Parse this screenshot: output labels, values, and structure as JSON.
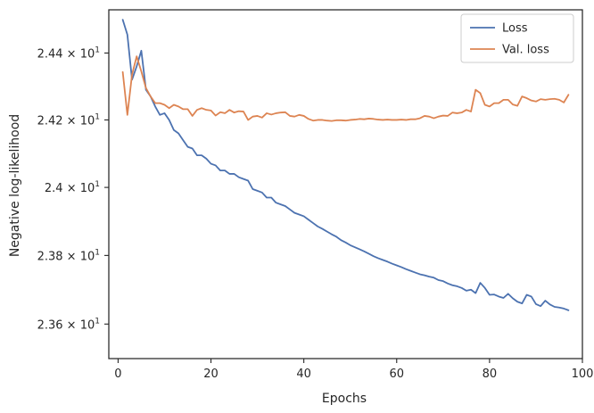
{
  "chart_data": {
    "type": "line",
    "title": "",
    "xlabel": "Epochs",
    "ylabel": "Negative log-likelihood",
    "xlim": [
      -2,
      100
    ],
    "ylim": [
      23.5,
      24.53
    ],
    "yscale": "log",
    "grid": false,
    "legend_position": "top-right",
    "x_ticks": [
      0,
      20,
      40,
      60,
      80,
      100
    ],
    "x_tick_labels": [
      "0",
      "20",
      "40",
      "60",
      "80",
      "100"
    ],
    "y_ticks": [
      23.6,
      23.8,
      24.0,
      24.2,
      24.4
    ],
    "y_tick_labels": [
      {
        "mantissa": "2.36",
        "exp": "1"
      },
      {
        "mantissa": "2.38",
        "exp": "1"
      },
      {
        "mantissa": "2.4",
        "exp": "1"
      },
      {
        "mantissa": "2.42",
        "exp": "1"
      },
      {
        "mantissa": "2.44",
        "exp": "1"
      }
    ],
    "series": [
      {
        "name": "Loss",
        "color": "#4c72b0",
        "x": [
          1,
          2,
          3,
          4,
          5,
          6,
          7,
          8,
          9,
          10,
          11,
          12,
          13,
          14,
          15,
          16,
          17,
          18,
          19,
          20,
          21,
          22,
          23,
          24,
          25,
          26,
          27,
          28,
          29,
          30,
          31,
          32,
          33,
          34,
          35,
          36,
          37,
          38,
          39,
          40,
          41,
          42,
          43,
          44,
          45,
          46,
          47,
          48,
          49,
          50,
          51,
          52,
          53,
          54,
          55,
          56,
          57,
          58,
          59,
          60,
          61,
          62,
          63,
          64,
          65,
          66,
          67,
          68,
          69,
          70,
          71,
          72,
          73,
          74,
          75,
          76,
          77,
          78,
          79,
          80,
          81,
          82,
          83,
          84,
          85,
          86,
          87,
          88,
          89,
          90,
          91,
          92,
          93,
          94,
          95,
          96,
          97
        ],
        "values": [
          24.5,
          24.455,
          24.32,
          24.36,
          24.407,
          24.29,
          24.27,
          24.24,
          24.215,
          24.22,
          24.2,
          24.17,
          24.16,
          24.14,
          24.12,
          24.115,
          24.095,
          24.095,
          24.085,
          24.07,
          24.065,
          24.05,
          24.05,
          24.04,
          24.04,
          24.03,
          24.025,
          24.02,
          23.995,
          23.99,
          23.985,
          23.97,
          23.97,
          23.955,
          23.95,
          23.945,
          23.935,
          23.925,
          23.92,
          23.915,
          23.905,
          23.895,
          23.885,
          23.878,
          23.87,
          23.862,
          23.855,
          23.845,
          23.838,
          23.83,
          23.824,
          23.818,
          23.812,
          23.805,
          23.798,
          23.792,
          23.787,
          23.782,
          23.776,
          23.771,
          23.766,
          23.76,
          23.755,
          23.75,
          23.745,
          23.742,
          23.738,
          23.735,
          23.728,
          23.725,
          23.718,
          23.713,
          23.71,
          23.705,
          23.697,
          23.7,
          23.69,
          23.72,
          23.705,
          23.685,
          23.686,
          23.68,
          23.676,
          23.688,
          23.675,
          23.665,
          23.66,
          23.685,
          23.68,
          23.658,
          23.652,
          23.668,
          23.657,
          23.65,
          23.648,
          23.645,
          23.64
        ]
      },
      {
        "name": "Val. loss",
        "color": "#dd8452",
        "x": [
          1,
          2,
          3,
          4,
          5,
          6,
          7,
          8,
          9,
          10,
          11,
          12,
          13,
          14,
          15,
          16,
          17,
          18,
          19,
          20,
          21,
          22,
          23,
          24,
          25,
          26,
          27,
          28,
          29,
          30,
          31,
          32,
          33,
          34,
          35,
          36,
          37,
          38,
          39,
          40,
          41,
          42,
          43,
          44,
          45,
          46,
          47,
          48,
          49,
          50,
          51,
          52,
          53,
          54,
          55,
          56,
          57,
          58,
          59,
          60,
          61,
          62,
          63,
          64,
          65,
          66,
          67,
          68,
          69,
          70,
          71,
          72,
          73,
          74,
          75,
          76,
          77,
          78,
          79,
          80,
          81,
          82,
          83,
          84,
          85,
          86,
          87,
          88,
          89,
          90,
          91,
          92,
          93,
          94,
          95,
          96,
          97
        ],
        "values": [
          24.343,
          24.215,
          24.335,
          24.39,
          24.345,
          24.295,
          24.27,
          24.25,
          24.25,
          24.245,
          24.235,
          24.245,
          24.24,
          24.232,
          24.232,
          24.212,
          24.23,
          24.235,
          24.23,
          24.228,
          24.213,
          24.223,
          24.22,
          24.23,
          24.222,
          24.226,
          24.225,
          24.2,
          24.21,
          24.212,
          24.207,
          24.22,
          24.216,
          24.22,
          24.222,
          24.223,
          24.212,
          24.21,
          24.215,
          24.212,
          24.203,
          24.198,
          24.2,
          24.2,
          24.198,
          24.197,
          24.199,
          24.199,
          24.198,
          24.2,
          24.201,
          24.203,
          24.202,
          24.204,
          24.203,
          24.201,
          24.2,
          24.201,
          24.2,
          24.2,
          24.201,
          24.2,
          24.202,
          24.202,
          24.205,
          24.212,
          24.21,
          24.205,
          24.21,
          24.213,
          24.212,
          24.222,
          24.22,
          24.222,
          24.23,
          24.225,
          24.29,
          24.28,
          24.245,
          24.24,
          24.25,
          24.25,
          24.26,
          24.26,
          24.246,
          24.242,
          24.27,
          24.265,
          24.258,
          24.255,
          24.262,
          24.26,
          24.262,
          24.263,
          24.26,
          24.252,
          24.275
        ]
      }
    ]
  }
}
